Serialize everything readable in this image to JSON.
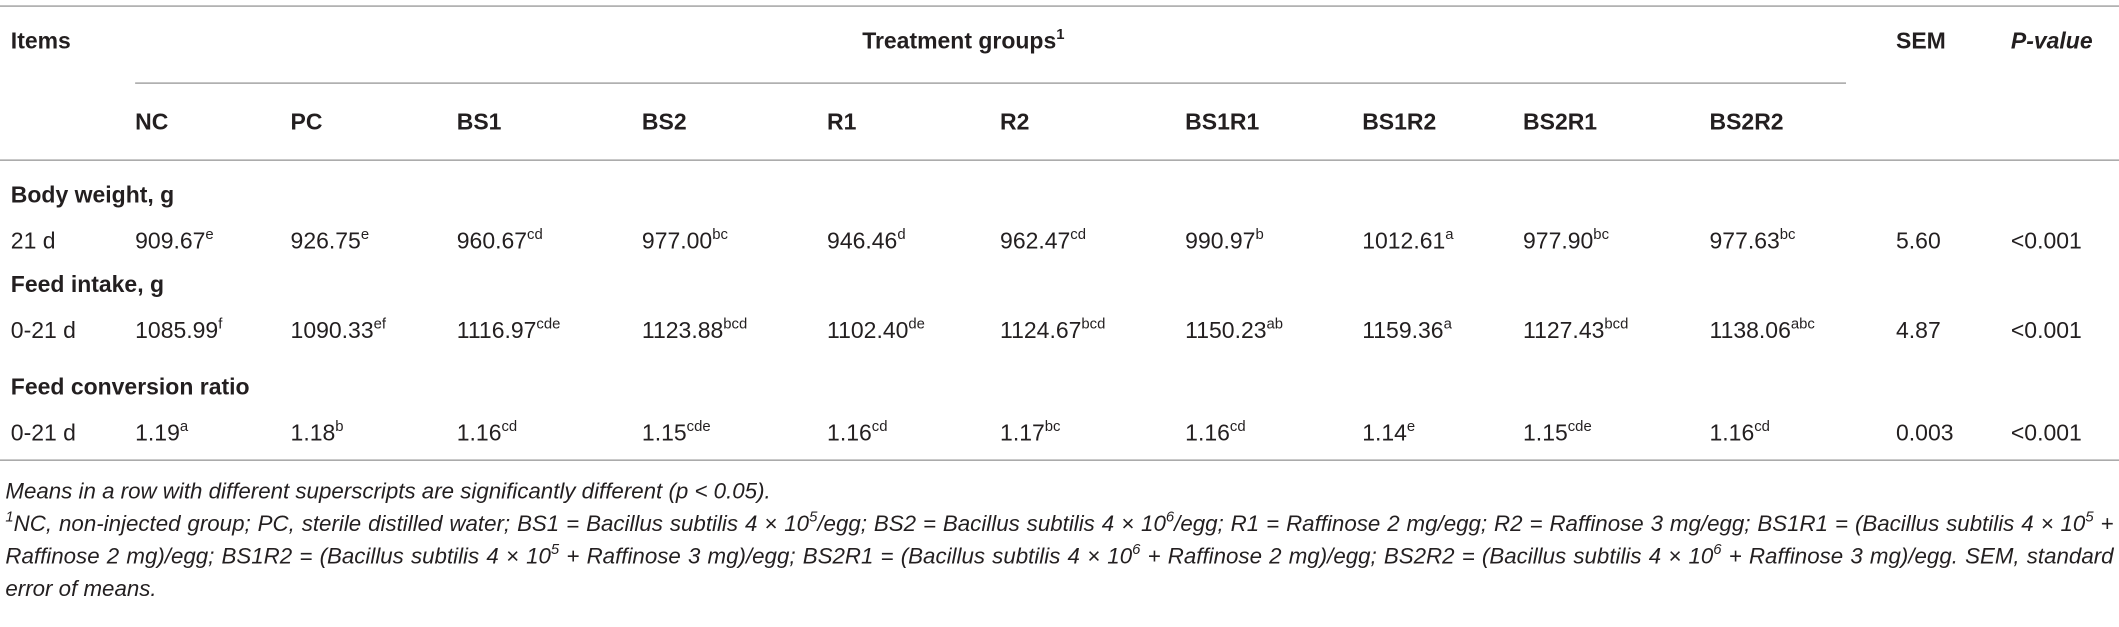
{
  "table": {
    "header": {
      "items": "Items",
      "treatment_groups": "Treatment groups",
      "treatment_groups_sup": "1",
      "sem": "SEM",
      "p_value": "P-value"
    },
    "columns": [
      "NC",
      "PC",
      "BS1",
      "BS2",
      "R1",
      "R2",
      "BS1R1",
      "BS1R2",
      "BS2R1",
      "BS2R2"
    ],
    "sections": [
      {
        "title": "Body weight, g",
        "rows": [
          {
            "label": "21 d",
            "cells": [
              {
                "value": "909.67",
                "sup": "e"
              },
              {
                "value": "926.75",
                "sup": "e"
              },
              {
                "value": "960.67",
                "sup": "cd"
              },
              {
                "value": "977.00",
                "sup": "bc"
              },
              {
                "value": "946.46",
                "sup": "d"
              },
              {
                "value": "962.47",
                "sup": "cd"
              },
              {
                "value": "990.97",
                "sup": "b"
              },
              {
                "value": "1012.61",
                "sup": "a"
              },
              {
                "value": "977.90",
                "sup": "bc"
              },
              {
                "value": "977.63",
                "sup": "bc"
              }
            ],
            "sem": "5.60",
            "p_value": "<0.001"
          }
        ]
      },
      {
        "title": "Feed intake, g",
        "rows": [
          {
            "label": "0-21 d",
            "cells": [
              {
                "value": "1085.99",
                "sup": "f"
              },
              {
                "value": "1090.33",
                "sup": "ef"
              },
              {
                "value": "1116.97",
                "sup": "cde"
              },
              {
                "value": "1123.88",
                "sup": "bcd"
              },
              {
                "value": "1102.40",
                "sup": "de"
              },
              {
                "value": "1124.67",
                "sup": "bcd"
              },
              {
                "value": "1150.23",
                "sup": "ab"
              },
              {
                "value": "1159.36",
                "sup": "a"
              },
              {
                "value": "1127.43",
                "sup": "bcd"
              },
              {
                "value": "1138.06",
                "sup": "abc"
              }
            ],
            "sem": "4.87",
            "p_value": "<0.001"
          }
        ]
      },
      {
        "title": "Feed conversion ratio",
        "rows": [
          {
            "label": "0-21 d",
            "cells": [
              {
                "value": "1.19",
                "sup": "a"
              },
              {
                "value": "1.18",
                "sup": "b"
              },
              {
                "value": "1.16",
                "sup": "cd"
              },
              {
                "value": "1.15",
                "sup": "cde"
              },
              {
                "value": "1.16",
                "sup": "cd"
              },
              {
                "value": "1.17",
                "sup": "bc"
              },
              {
                "value": "1.16",
                "sup": "cd"
              },
              {
                "value": "1.14",
                "sup": "e"
              },
              {
                "value": "1.15",
                "sup": "cde"
              },
              {
                "value": "1.16",
                "sup": "cd"
              }
            ],
            "sem": "0.003",
            "p_value": "<0.001"
          }
        ]
      }
    ]
  },
  "footnotes": [
    {
      "parts": [
        {
          "text": "Means in a row with different superscripts are significantly different (p < 0.05)."
        }
      ]
    },
    {
      "parts": [
        {
          "sup": "1"
        },
        {
          "text": "NC, non-injected group; PC, sterile distilled water; BS1 = Bacillus subtilis 4 × 10"
        },
        {
          "sup": "5"
        },
        {
          "text": "/egg; BS2 = Bacillus subtilis 4 × 10"
        },
        {
          "sup": "6"
        },
        {
          "text": "/egg; R1 = Raffinose 2 mg/egg; R2 = Raffinose 3 mg/egg; BS1R1 = (Bacillus subtilis 4 × 10"
        },
        {
          "sup": "5"
        },
        {
          "text": " + Raffinose 2 mg)/egg; BS1R2 = (Bacillus subtilis 4 × 10"
        },
        {
          "sup": "5"
        },
        {
          "text": " + Raffinose 3 mg)/egg; BS2R1 = (Bacillus subtilis 4 × 10"
        },
        {
          "sup": "6"
        },
        {
          "text": " + Raffinose 2 mg)/egg; BS2R2 = (Bacillus subtilis 4 × 10"
        },
        {
          "sup": "6"
        },
        {
          "text": " + Raffinose 3 mg)/egg. SEM, standard error of means."
        }
      ]
    }
  ]
}
